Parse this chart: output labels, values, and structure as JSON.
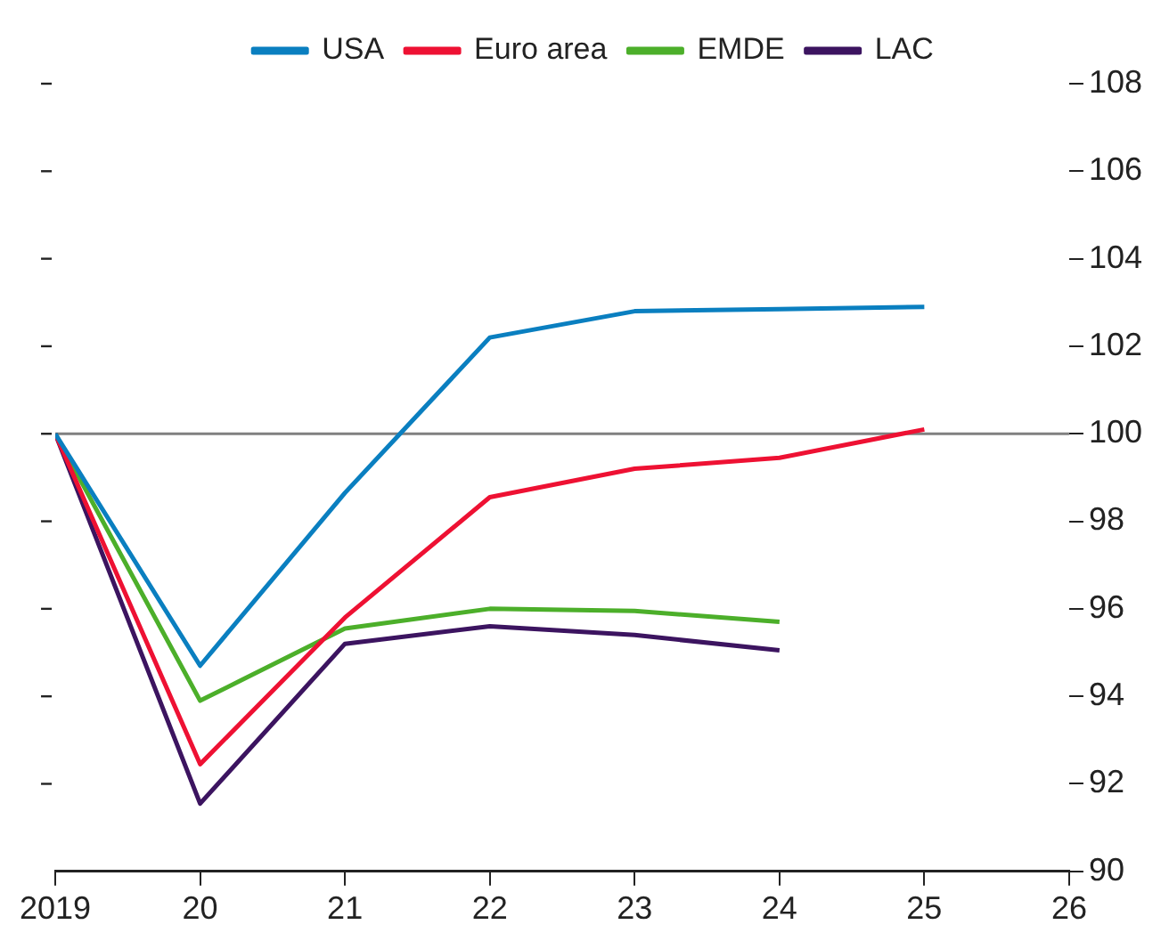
{
  "chart_data": {
    "type": "line",
    "x": [
      2019,
      2020,
      2021,
      2022,
      2023,
      2024,
      2025
    ],
    "series": [
      {
        "name": "USA",
        "color": "#0a7fc0",
        "values": [
          100,
          94.7,
          98.65,
          102.2,
          102.8,
          102.85,
          102.9
        ]
      },
      {
        "name": "Euro area",
        "color": "#ee1133",
        "values": [
          100,
          92.45,
          95.8,
          98.55,
          99.2,
          99.45,
          100.1
        ]
      },
      {
        "name": "EMDE",
        "color": "#4caf2a",
        "values": [
          100,
          93.9,
          95.55,
          96.0,
          95.95,
          95.7,
          null
        ]
      },
      {
        "name": "LAC",
        "color": "#3c1460",
        "values": [
          100,
          91.55,
          95.2,
          95.6,
          95.4,
          95.05,
          null
        ]
      }
    ],
    "xlim": [
      2019,
      2026
    ],
    "xticks": [
      2019,
      {
        "value": 2020,
        "label": "20"
      },
      {
        "value": 2021,
        "label": "21"
      },
      {
        "value": 2022,
        "label": "22"
      },
      {
        "value": 2023,
        "label": "23"
      },
      {
        "value": 2024,
        "label": "24"
      },
      {
        "value": 2025,
        "label": "25"
      },
      {
        "value": 2026,
        "label": "26"
      }
    ],
    "ylim": [
      90,
      108
    ],
    "yticks": [
      90,
      92,
      94,
      96,
      98,
      100,
      102,
      104,
      106,
      108
    ],
    "ref_lines": [
      {
        "axis": "y",
        "value": 100,
        "color": "#808080"
      }
    ],
    "grid": false,
    "legend": "top",
    "marker": "none",
    "line_style": "solid"
  }
}
